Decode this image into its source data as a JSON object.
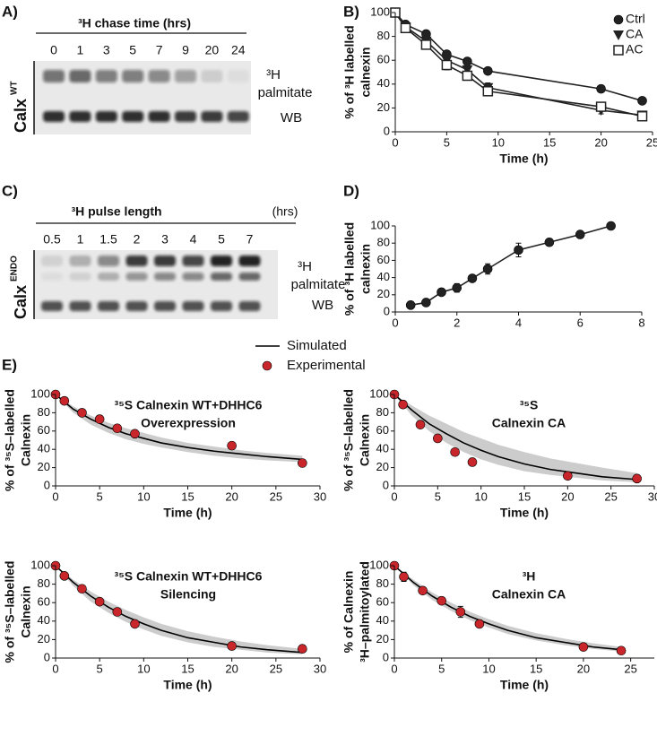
{
  "blots": [
    {
      "panel_label": "A)",
      "title": "³H chase time (hrs)",
      "lanes": [
        "0",
        "1",
        "3",
        "5",
        "7",
        "9",
        "20",
        "24"
      ],
      "side_label": "Calx",
      "side_sup": "WT",
      "labels": [
        "³H",
        "palmitate",
        "WB"
      ]
    },
    {
      "panel_label": "C)",
      "title": "³H pulse length",
      "title_unit": "(hrs)",
      "lanes": [
        "0.5",
        "1",
        "1.5",
        "2",
        "3",
        "4",
        "5",
        "7"
      ],
      "side_label": "Calx",
      "side_sup": "ENDO",
      "labels": [
        "³H",
        "palmitate",
        "WB"
      ]
    }
  ],
  "chart_data": [
    {
      "type": "line",
      "panel_label": "B)",
      "ylabel": [
        "% of ³H labelled",
        "calnexin"
      ],
      "xlabel": "Time (h)",
      "x": [
        0,
        1,
        3,
        5,
        7,
        9,
        20,
        24
      ],
      "xlim": [
        0,
        25
      ],
      "xticks": [
        0,
        5,
        10,
        15,
        20,
        25
      ],
      "ylim": [
        0,
        100
      ],
      "yticks": [
        0,
        20,
        40,
        60,
        80,
        100
      ],
      "grid": false,
      "legend": "upper right",
      "series": [
        {
          "name": "Ctrl",
          "color": "#222222",
          "marker": "circle",
          "line": true,
          "values": [
            100,
            90,
            82,
            65,
            59,
            51,
            36,
            26
          ],
          "errors": [
            0,
            2,
            1,
            2,
            1,
            1,
            1,
            1
          ]
        },
        {
          "name": "CA",
          "color": "#222222",
          "marker": "triangle_down",
          "line": true,
          "values": [
            100,
            88,
            76,
            60,
            52,
            37,
            18,
            14
          ],
          "errors": [
            0,
            3,
            2,
            3,
            3,
            4,
            3,
            2
          ]
        },
        {
          "name": "AC",
          "color": "#222222",
          "marker": "square_open",
          "line": true,
          "values": [
            100,
            87,
            73,
            56,
            47,
            34,
            21,
            13
          ],
          "errors": [
            0,
            2,
            2,
            4,
            3,
            2,
            2,
            2
          ]
        }
      ]
    },
    {
      "type": "line",
      "panel_label": "D)",
      "ylabel": [
        "% of ³H labelled",
        "calnexin"
      ],
      "x": [
        0.5,
        1,
        1.5,
        2,
        2.5,
        3,
        4,
        5,
        6,
        7
      ],
      "xlim": [
        0,
        8
      ],
      "xticks": [
        0,
        2,
        4,
        6,
        8
      ],
      "ylim": [
        0,
        100
      ],
      "yticks": [
        0,
        20,
        40,
        60,
        80,
        100
      ],
      "grid": false,
      "series": [
        {
          "color": "#222222",
          "marker": "circle",
          "line": true,
          "values": [
            8,
            11,
            23,
            28,
            39,
            50,
            72,
            81,
            90,
            100
          ],
          "errors": [
            2,
            2,
            3,
            5,
            3,
            6,
            8,
            4,
            2,
            1
          ]
        }
      ]
    },
    {
      "type": "line",
      "panel_label": "E)",
      "title": [
        "³⁵S Calnexin WT+DHHC6",
        "Overexpression"
      ],
      "ylabel": [
        "% of ³⁵S–labelled",
        "Calnexin"
      ],
      "xlabel": "Time (h)",
      "xlim": [
        0,
        30
      ],
      "xticks": [
        0,
        5,
        10,
        15,
        20,
        25,
        30
      ],
      "ylim": [
        0,
        100
      ],
      "yticks": [
        0,
        20,
        40,
        60,
        80,
        100
      ],
      "grid": false,
      "legend": "above",
      "series": [
        {
          "name": "Simulated",
          "color": "#000000",
          "line": true,
          "band_color": "#cccccc",
          "x": [
            0,
            2,
            4,
            6,
            8,
            10,
            12,
            15,
            18,
            21,
            24,
            28
          ],
          "values": [
            100,
            84,
            73,
            64,
            57,
            52,
            47,
            42,
            38,
            35,
            32,
            29
          ],
          "band_low": [
            100,
            80,
            67,
            58,
            51,
            46,
            42,
            37,
            33,
            30,
            28,
            26
          ],
          "band_high": [
            100,
            87,
            77,
            69,
            63,
            58,
            53,
            47,
            43,
            39,
            36,
            33
          ]
        },
        {
          "name": "Experimental",
          "color": "#c8262a",
          "marker": "circle",
          "line": false,
          "x": [
            0,
            1,
            3,
            5,
            7,
            9,
            20,
            28
          ],
          "values": [
            100,
            93,
            80,
            73,
            63,
            57,
            44,
            25
          ],
          "errors": [
            0,
            1,
            2,
            3,
            2,
            3,
            2,
            3
          ]
        }
      ]
    },
    {
      "type": "line",
      "title": [
        "³⁵S",
        "Calnexin CA"
      ],
      "ylabel": [
        "% of ³⁵S–labelled",
        "Calnexin"
      ],
      "xlabel": "Time (h)",
      "xlim": [
        0,
        30
      ],
      "xticks": [
        0,
        5,
        10,
        15,
        20,
        25,
        30
      ],
      "ylim": [
        0,
        100
      ],
      "yticks": [
        0,
        20,
        40,
        60,
        80,
        100
      ],
      "grid": false,
      "series": [
        {
          "color": "#000000",
          "line": true,
          "band_color": "#cccccc",
          "x": [
            0,
            2,
            4,
            6,
            8,
            10,
            12,
            15,
            18,
            21,
            24,
            28
          ],
          "values": [
            100,
            83,
            68,
            57,
            47,
            39,
            32,
            24,
            18,
            14,
            10,
            7
          ],
          "band_low": [
            100,
            77,
            60,
            47,
            37,
            29,
            23,
            16,
            12,
            9,
            6,
            4
          ],
          "band_high": [
            100,
            88,
            77,
            68,
            59,
            52,
            45,
            37,
            30,
            25,
            20,
            14
          ]
        },
        {
          "color": "#c8262a",
          "marker": "circle",
          "line": false,
          "x": [
            0,
            1,
            3,
            5,
            7,
            9,
            20,
            28
          ],
          "values": [
            100,
            89,
            67,
            52,
            37,
            26,
            11,
            8
          ],
          "errors": [
            0,
            1,
            1,
            1,
            1,
            1,
            1,
            1
          ]
        }
      ]
    },
    {
      "type": "line",
      "title": [
        "³⁵S Calnexin WT+DHHC6",
        "Silencing"
      ],
      "ylabel": [
        "% of ³⁵S–labelled",
        "Calnexin"
      ],
      "xlabel": "Time (h)",
      "xlim": [
        0,
        30
      ],
      "xticks": [
        0,
        5,
        10,
        15,
        20,
        25,
        30
      ],
      "ylim": [
        0,
        100
      ],
      "yticks": [
        0,
        20,
        40,
        60,
        80,
        100
      ],
      "grid": false,
      "series": [
        {
          "color": "#000000",
          "line": true,
          "band_color": "#cccccc",
          "x": [
            0,
            2,
            4,
            6,
            8,
            10,
            12,
            15,
            18,
            21,
            24,
            28
          ],
          "values": [
            100,
            82,
            67,
            55,
            45,
            37,
            30,
            22,
            17,
            12,
            9,
            6
          ],
          "band_low": [
            100,
            78,
            61,
            49,
            39,
            31,
            24,
            17,
            12,
            9,
            6,
            4
          ],
          "band_high": [
            100,
            85,
            72,
            61,
            52,
            44,
            37,
            29,
            23,
            18,
            14,
            10
          ]
        },
        {
          "color": "#c8262a",
          "marker": "circle",
          "line": false,
          "x": [
            0,
            1,
            3,
            5,
            7,
            9,
            20,
            28
          ],
          "values": [
            100,
            89,
            75,
            61,
            50,
            37,
            13,
            10
          ],
          "errors": [
            0,
            1,
            1,
            1,
            1,
            1,
            1,
            1
          ]
        }
      ]
    },
    {
      "type": "line",
      "title": [
        "³H",
        "Calnexin CA"
      ],
      "ylabel": [
        "% of Calnexin",
        "³H–palmitoylated"
      ],
      "xlabel": "Time (h)",
      "xlim": [
        0,
        27.5
      ],
      "xticks": [
        0,
        5,
        10,
        15,
        20,
        25
      ],
      "ylim": [
        0,
        100
      ],
      "yticks": [
        0,
        20,
        40,
        60,
        80,
        100
      ],
      "grid": false,
      "series": [
        {
          "color": "#000000",
          "line": true,
          "band_color": "#cccccc",
          "x": [
            0,
            2,
            4,
            6,
            8,
            10,
            12,
            15,
            18,
            21,
            24
          ],
          "values": [
            100,
            82,
            67,
            55,
            45,
            37,
            30,
            22,
            17,
            12,
            9
          ],
          "band_low": [
            100,
            79,
            63,
            51,
            41,
            33,
            26,
            19,
            14,
            10,
            7
          ],
          "band_high": [
            100,
            85,
            71,
            60,
            50,
            42,
            35,
            27,
            21,
            16,
            12
          ]
        },
        {
          "color": "#c8262a",
          "marker": "circle",
          "line": false,
          "x": [
            0,
            1,
            3,
            5,
            7,
            9,
            20,
            24
          ],
          "values": [
            100,
            88,
            73,
            62,
            50,
            37,
            12,
            8
          ],
          "errors": [
            0,
            5,
            3,
            3,
            6,
            4,
            3,
            2
          ]
        }
      ]
    }
  ]
}
